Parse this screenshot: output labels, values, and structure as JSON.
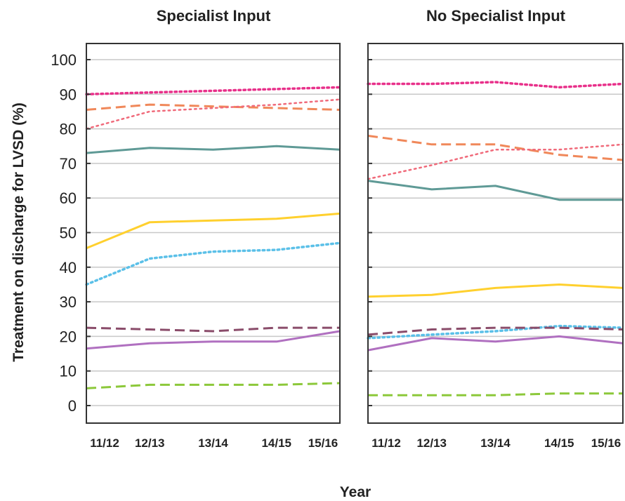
{
  "chart_data": {
    "type": "line",
    "xlabel": "Year",
    "ylabel": "Treatment on discharge for LVSD (%)",
    "ylim": [
      0,
      100
    ],
    "yticks": [
      0,
      10,
      20,
      30,
      40,
      50,
      60,
      70,
      80,
      90,
      100
    ],
    "grid": true,
    "categories": [
      "11/12",
      "12/13",
      "13/14",
      "14/15",
      "15/16"
    ],
    "panels": [
      {
        "title": "Specialist Input",
        "series": [
          {
            "color": "#e8308a",
            "style": "dotted-heavy",
            "values": [
              90,
              90.5,
              91,
              91.5,
              92
            ]
          },
          {
            "color": "#f0885a",
            "style": "dashed",
            "values": [
              85.5,
              87,
              86.5,
              86,
              85.5
            ]
          },
          {
            "color": "#f06a7a",
            "style": "dotted",
            "values": [
              80,
              85,
              86,
              87,
              88.5
            ]
          },
          {
            "color": "#5f9a96",
            "style": "solid",
            "values": [
              73,
              74.5,
              74,
              75,
              74
            ]
          },
          {
            "color": "#ffd02e",
            "style": "solid",
            "values": [
              45.5,
              53,
              53.5,
              54,
              55.5
            ]
          },
          {
            "color": "#5bc0e8",
            "style": "dotted-heavy",
            "values": [
              35,
              42.5,
              44.5,
              45,
              47
            ]
          },
          {
            "color": "#8a4c6a",
            "style": "dashed",
            "values": [
              22.5,
              22,
              21.5,
              22.5,
              22.5
            ]
          },
          {
            "color": "#b070c0",
            "style": "solid",
            "values": [
              16.5,
              18,
              18.5,
              18.5,
              21.5
            ]
          },
          {
            "color": "#8cc83a",
            "style": "dashed",
            "values": [
              5,
              6,
              6,
              6,
              6.5
            ]
          }
        ]
      },
      {
        "title": "No Specialist Input",
        "series": [
          {
            "color": "#e8308a",
            "style": "dotted-heavy",
            "values": [
              93,
              93,
              93.5,
              92,
              93
            ]
          },
          {
            "color": "#f0885a",
            "style": "dashed",
            "values": [
              78,
              75.5,
              75.5,
              72.5,
              71
            ]
          },
          {
            "color": "#f06a7a",
            "style": "dotted",
            "values": [
              65.5,
              69.5,
              74,
              74,
              75.5
            ]
          },
          {
            "color": "#5f9a96",
            "style": "solid",
            "values": [
              65,
              62.5,
              63.5,
              59.5,
              59.5
            ]
          },
          {
            "color": "#ffd02e",
            "style": "solid",
            "values": [
              31.5,
              32,
              34,
              35,
              34
            ]
          },
          {
            "color": "#5bc0e8",
            "style": "dotted-heavy",
            "values": [
              19.5,
              20.5,
              21.5,
              23,
              22.5
            ]
          },
          {
            "color": "#8a4c6a",
            "style": "dashed",
            "values": [
              20.5,
              22,
              22.5,
              22.5,
              22
            ]
          },
          {
            "color": "#b070c0",
            "style": "solid",
            "values": [
              16,
              19.5,
              18.5,
              20,
              18
            ]
          },
          {
            "color": "#8cc83a",
            "style": "dashed",
            "values": [
              3,
              3,
              3,
              3.5,
              3.5
            ]
          }
        ]
      }
    ]
  }
}
